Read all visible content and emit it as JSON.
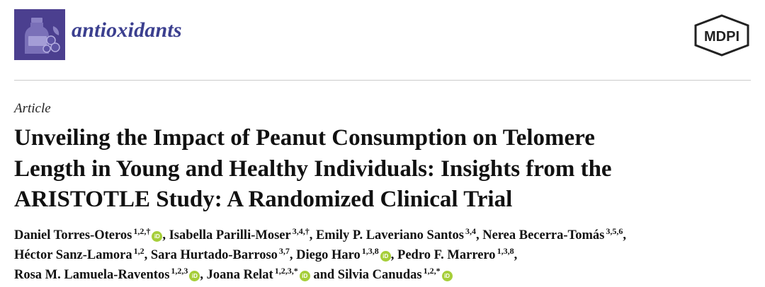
{
  "journal": {
    "name": "antioxidants"
  },
  "publisher": {
    "logo_text": "MDPI"
  },
  "article": {
    "type": "Article",
    "title_lines": [
      "Unveiling the Impact of Peanut Consumption on Telomere",
      "Length in Young and Healthy Individuals: Insights from the",
      "ARISTOTLE Study: A Randomized Clinical Trial"
    ]
  },
  "authors": [
    {
      "name": "Daniel Torres-Oteros",
      "aff": "1,2,†",
      "orcid": true
    },
    {
      "name": "Isabella Parilli-Moser",
      "aff": "3,4,†",
      "orcid": false
    },
    {
      "name": "Emily P. Laveriano Santos",
      "aff": "3,4",
      "orcid": false
    },
    {
      "name": "Nerea Becerra-Tomás",
      "aff": "3,5,6",
      "orcid": false
    },
    {
      "name": "Héctor Sanz-Lamora",
      "aff": "1,2",
      "orcid": false
    },
    {
      "name": "Sara Hurtado-Barroso",
      "aff": "3,7",
      "orcid": false
    },
    {
      "name": "Diego Haro",
      "aff": "1,3,8",
      "orcid": true
    },
    {
      "name": "Pedro F. Marrero",
      "aff": "1,3,8",
      "orcid": false
    },
    {
      "name": "Rosa M. Lamuela-Raventos",
      "aff": "1,2,3",
      "orcid": true
    },
    {
      "name": "Joana Relat",
      "aff": "1,2,3,*",
      "orcid": true
    },
    {
      "name": "Silvia Canudas",
      "aff": "1,2,*",
      "orcid": true
    }
  ],
  "separators": {
    "comma": ",",
    "and": "and"
  },
  "orcid_label": "iD",
  "colors": {
    "brand_purple": "#4b3f8f",
    "journal_text": "#3b3f8f",
    "orcid_green": "#a6ce39"
  }
}
